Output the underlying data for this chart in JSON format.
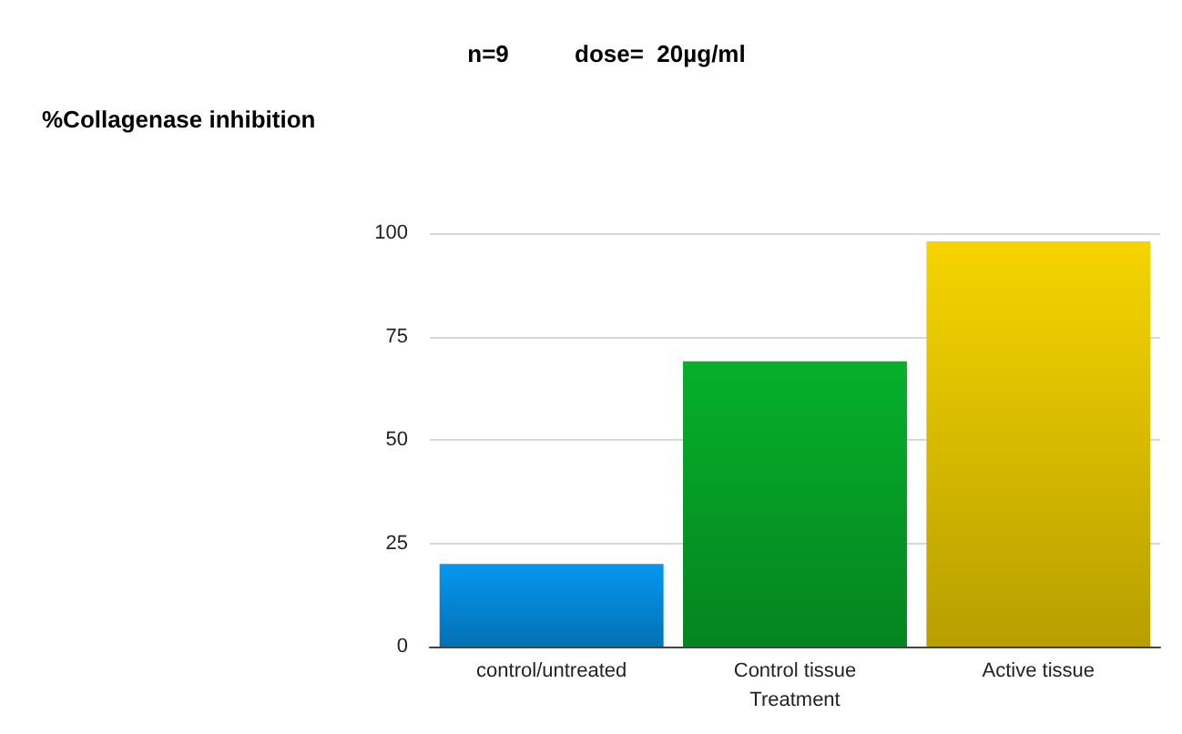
{
  "chart_data": {
    "type": "bar",
    "title": "n=9          dose=  20µg/ml",
    "ylabel": "%Collagenase inhibition",
    "xlabel": "Treatment",
    "categories": [
      "control/untreated",
      "Control tissue",
      "Active tissue"
    ],
    "values": [
      20,
      69,
      98
    ],
    "colors": [
      "#0597f0",
      "#06b02a",
      "#f5d400"
    ],
    "ylim": [
      0,
      100
    ],
    "yticks": [
      0,
      25,
      50,
      75,
      100
    ],
    "grid": "y"
  }
}
